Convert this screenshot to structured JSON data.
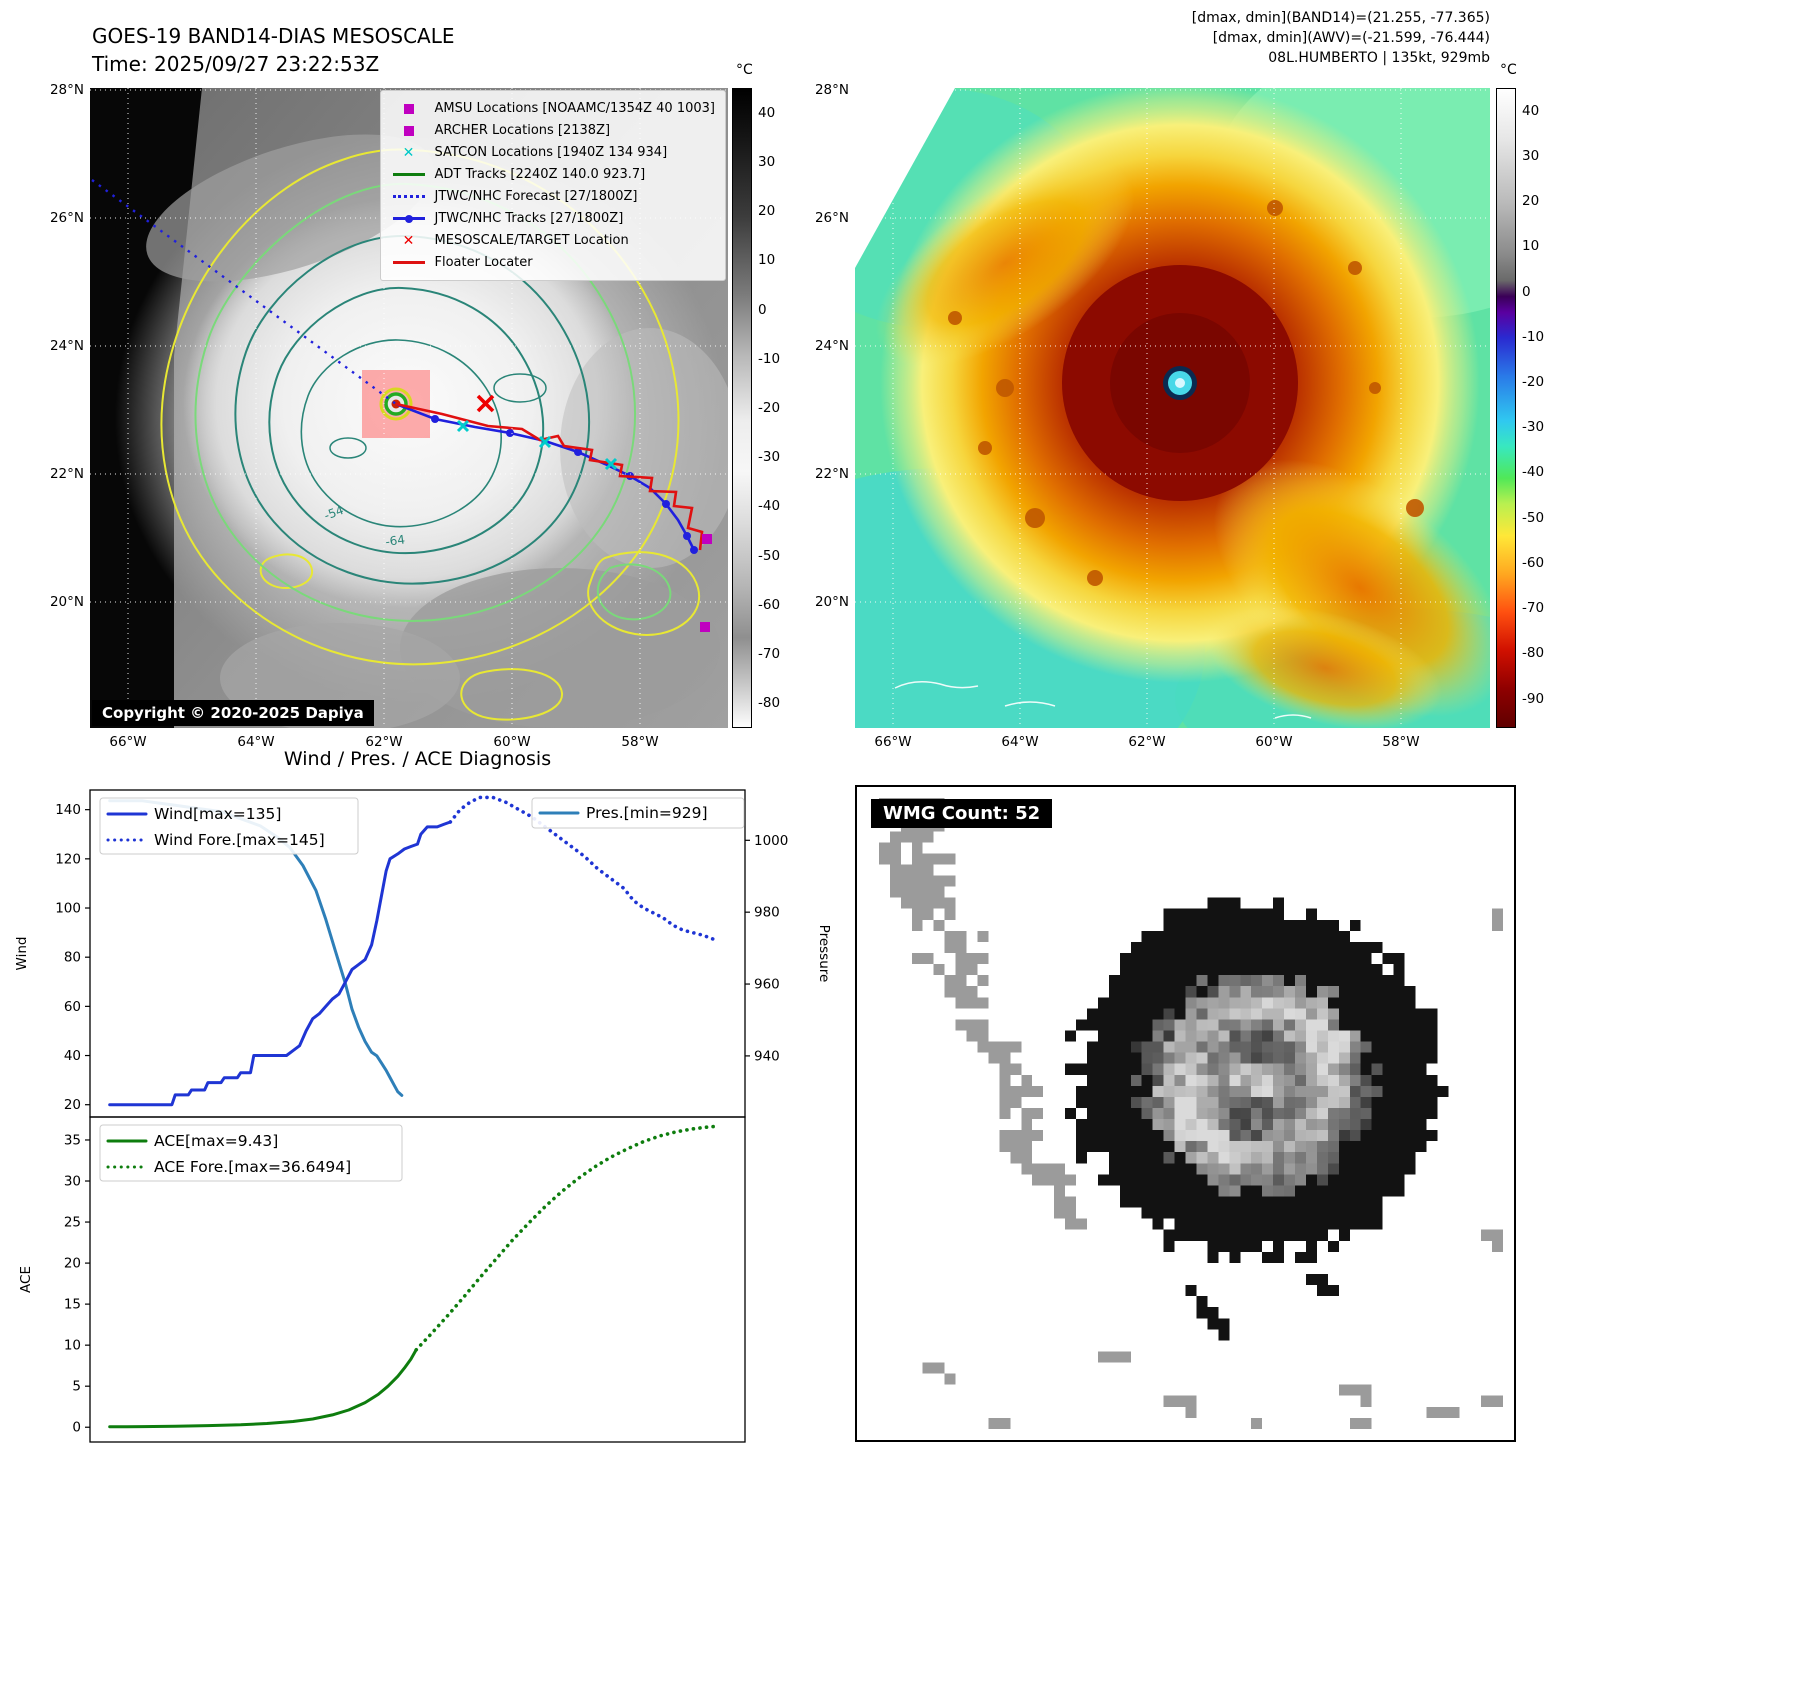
{
  "tl": {
    "title": "GOES-19 BAND14-DIAS MESOSCALE",
    "subtitle": "Time: 2025/09/27 23:22:53Z",
    "copyright": "Copyright © 2020-2025 Dapiya",
    "colorbar_unit": "°C",
    "colorbar_ticks": [
      40,
      30,
      20,
      10,
      0,
      -10,
      -20,
      -30,
      -40,
      -50,
      -60,
      -70,
      -80
    ],
    "x_ticks": [
      "66°W",
      "64°W",
      "62°W",
      "60°W",
      "58°W"
    ],
    "y_ticks": [
      "28°N",
      "26°N",
      "24°N",
      "22°N",
      "20°N"
    ],
    "contours": [
      "-54",
      "-64"
    ],
    "legend": [
      {
        "label": "AMSU Locations [NOAAMC/1354Z 40 1003]",
        "marker": "square",
        "color": "#c000c0"
      },
      {
        "label": "ARCHER Locations [2138Z]",
        "marker": "square",
        "color": "#c000c0"
      },
      {
        "label": "SATCON Locations [1940Z 134 934]",
        "marker": "x",
        "color": "#00c8c8"
      },
      {
        "label": "ADT Tracks [2240Z 140.0 923.7]",
        "marker": "line",
        "color": "#0e7d0e"
      },
      {
        "label": "JTWC/NHC Forecast [27/1800Z]",
        "marker": "dotted",
        "color": "#2020dd"
      },
      {
        "label": "JTWC/NHC Tracks [27/1800Z]",
        "marker": "line-marker",
        "color": "#2020dd"
      },
      {
        "label": "MESOSCALE/TARGET Location",
        "marker": "x",
        "color": "#ee0000"
      },
      {
        "label": "Floater Locater",
        "marker": "line",
        "color": "#dd1111"
      }
    ]
  },
  "tr": {
    "header_line1": "[dmax, dmin](BAND14)=(21.255, -77.365)",
    "header_line2": "[dmax, dmin](AWV)=(-21.599, -76.444)",
    "header_line3": "08L.HUMBERTO | 135kt, 929mb",
    "colorbar_unit": "°C",
    "colorbar_ticks": [
      40,
      30,
      20,
      10,
      0,
      -10,
      -20,
      -30,
      -40,
      -50,
      -60,
      -70,
      -80,
      -90
    ],
    "x_ticks": [
      "66°W",
      "64°W",
      "62°W",
      "60°W",
      "58°W"
    ],
    "y_ticks": [
      "28°N",
      "26°N",
      "24°N",
      "22°N",
      "20°N"
    ]
  },
  "bl": {
    "title": "Wind / Pres. / ACE Diagnosis"
  },
  "br": {
    "badge": "WMG Count: 52"
  },
  "chart_data": [
    {
      "type": "line",
      "title": "Wind / Pres. / ACE Diagnosis",
      "xlabel": "",
      "ylabel_left": "Wind",
      "ylabel_right": "Pressure",
      "xlim": [
        0,
        1
      ],
      "ylim_left": [
        15,
        148
      ],
      "ylim_right": [
        923,
        1014
      ],
      "yticks_left": [
        20,
        40,
        60,
        80,
        100,
        120,
        140
      ],
      "yticks_right": [
        940,
        960,
        980,
        1000
      ],
      "grid": false,
      "legend_position": "upper-left and upper-right",
      "series": [
        {
          "name": "Wind[max=135]",
          "axis": "left",
          "style": "solid",
          "color": "#1f35d4",
          "points": [
            [
              0.03,
              20
            ],
            [
              0.08,
              20
            ],
            [
              0.125,
              20
            ],
            [
              0.13,
              24
            ],
            [
              0.15,
              24
            ],
            [
              0.155,
              26
            ],
            [
              0.175,
              26
            ],
            [
              0.18,
              29
            ],
            [
              0.2,
              29
            ],
            [
              0.205,
              31
            ],
            [
              0.225,
              31
            ],
            [
              0.23,
              33
            ],
            [
              0.245,
              33
            ],
            [
              0.25,
              40
            ],
            [
              0.285,
              40
            ],
            [
              0.3,
              40
            ],
            [
              0.31,
              42
            ],
            [
              0.32,
              44
            ],
            [
              0.33,
              50
            ],
            [
              0.34,
              55
            ],
            [
              0.35,
              57
            ],
            [
              0.36,
              60
            ],
            [
              0.37,
              63
            ],
            [
              0.38,
              65
            ],
            [
              0.39,
              70
            ],
            [
              0.4,
              75
            ],
            [
              0.41,
              77
            ],
            [
              0.42,
              79
            ],
            [
              0.43,
              85
            ],
            [
              0.438,
              95
            ],
            [
              0.445,
              105
            ],
            [
              0.452,
              115
            ],
            [
              0.458,
              120
            ],
            [
              0.47,
              122
            ],
            [
              0.48,
              124
            ],
            [
              0.49,
              125
            ],
            [
              0.5,
              126
            ],
            [
              0.505,
              130
            ],
            [
              0.515,
              133
            ],
            [
              0.53,
              133
            ],
            [
              0.54,
              134
            ],
            [
              0.55,
              135
            ]
          ]
        },
        {
          "name": "Wind Fore.[max=145]",
          "axis": "left",
          "style": "dotted",
          "color": "#1f35d4",
          "points": [
            [
              0.55,
              135
            ],
            [
              0.565,
              140
            ],
            [
              0.58,
              143
            ],
            [
              0.595,
              145
            ],
            [
              0.615,
              145
            ],
            [
              0.635,
              143
            ],
            [
              0.655,
              140
            ],
            [
              0.675,
              137
            ],
            [
              0.695,
              133
            ],
            [
              0.715,
              129
            ],
            [
              0.735,
              125
            ],
            [
              0.755,
              121
            ],
            [
              0.775,
              116
            ],
            [
              0.795,
              112
            ],
            [
              0.815,
              108
            ],
            [
              0.83,
              103
            ],
            [
              0.845,
              100
            ],
            [
              0.86,
              98
            ],
            [
              0.875,
              96
            ],
            [
              0.89,
              93
            ],
            [
              0.905,
              91
            ],
            [
              0.92,
              90
            ],
            [
              0.935,
              89
            ],
            [
              0.945,
              88
            ],
            [
              0.955,
              87
            ]
          ]
        },
        {
          "name": "Pres.[min=929]",
          "axis": "right",
          "style": "solid",
          "color": "#2e7fb8",
          "points": [
            [
              0.03,
              1011
            ],
            [
              0.08,
              1011
            ],
            [
              0.12,
              1010
            ],
            [
              0.16,
              1009
            ],
            [
              0.2,
              1008
            ],
            [
              0.23,
              1006
            ],
            [
              0.26,
              1004
            ],
            [
              0.285,
              1001
            ],
            [
              0.305,
              998
            ],
            [
              0.325,
              993
            ],
            [
              0.345,
              986
            ],
            [
              0.36,
              978
            ],
            [
              0.375,
              969
            ],
            [
              0.39,
              960
            ],
            [
              0.4,
              953
            ],
            [
              0.41,
              948
            ],
            [
              0.42,
              944
            ],
            [
              0.43,
              941
            ],
            [
              0.438,
              940
            ],
            [
              0.445,
              938
            ],
            [
              0.452,
              936
            ],
            [
              0.458,
              934
            ],
            [
              0.464,
              932
            ],
            [
              0.47,
              930
            ],
            [
              0.476,
              929
            ]
          ]
        }
      ]
    },
    {
      "type": "line",
      "title": "ACE",
      "xlabel": "",
      "ylabel_left": "ACE",
      "xlim": [
        0,
        1
      ],
      "ylim_left": [
        -1.8,
        37.8
      ],
      "yticks_left": [
        0,
        5,
        10,
        15,
        20,
        25,
        30,
        35
      ],
      "grid": false,
      "legend_position": "upper-left",
      "series": [
        {
          "name": "ACE[max=9.43]",
          "axis": "left",
          "style": "solid",
          "color": "#0e7d0e",
          "points": [
            [
              0.03,
              0.05
            ],
            [
              0.08,
              0.08
            ],
            [
              0.13,
              0.12
            ],
            [
              0.18,
              0.2
            ],
            [
              0.23,
              0.3
            ],
            [
              0.27,
              0.45
            ],
            [
              0.31,
              0.7
            ],
            [
              0.34,
              1.0
            ],
            [
              0.37,
              1.5
            ],
            [
              0.395,
              2.1
            ],
            [
              0.42,
              3.0
            ],
            [
              0.44,
              4.0
            ],
            [
              0.455,
              5.0
            ],
            [
              0.47,
              6.2
            ],
            [
              0.48,
              7.2
            ],
            [
              0.49,
              8.3
            ],
            [
              0.498,
              9.43
            ]
          ]
        },
        {
          "name": "ACE Fore.[max=36.6494]",
          "axis": "left",
          "style": "dotted",
          "color": "#0e7d0e",
          "points": [
            [
              0.498,
              9.43
            ],
            [
              0.52,
              11.3
            ],
            [
              0.545,
              13.5
            ],
            [
              0.57,
              15.8
            ],
            [
              0.595,
              18.2
            ],
            [
              0.62,
              20.5
            ],
            [
              0.645,
              22.8
            ],
            [
              0.67,
              24.9
            ],
            [
              0.695,
              26.9
            ],
            [
              0.72,
              28.7
            ],
            [
              0.745,
              30.3
            ],
            [
              0.77,
              31.7
            ],
            [
              0.795,
              32.9
            ],
            [
              0.82,
              33.9
            ],
            [
              0.845,
              34.8
            ],
            [
              0.87,
              35.5
            ],
            [
              0.895,
              36.0
            ],
            [
              0.92,
              36.35
            ],
            [
              0.94,
              36.55
            ],
            [
              0.955,
              36.6494
            ]
          ]
        }
      ]
    }
  ]
}
